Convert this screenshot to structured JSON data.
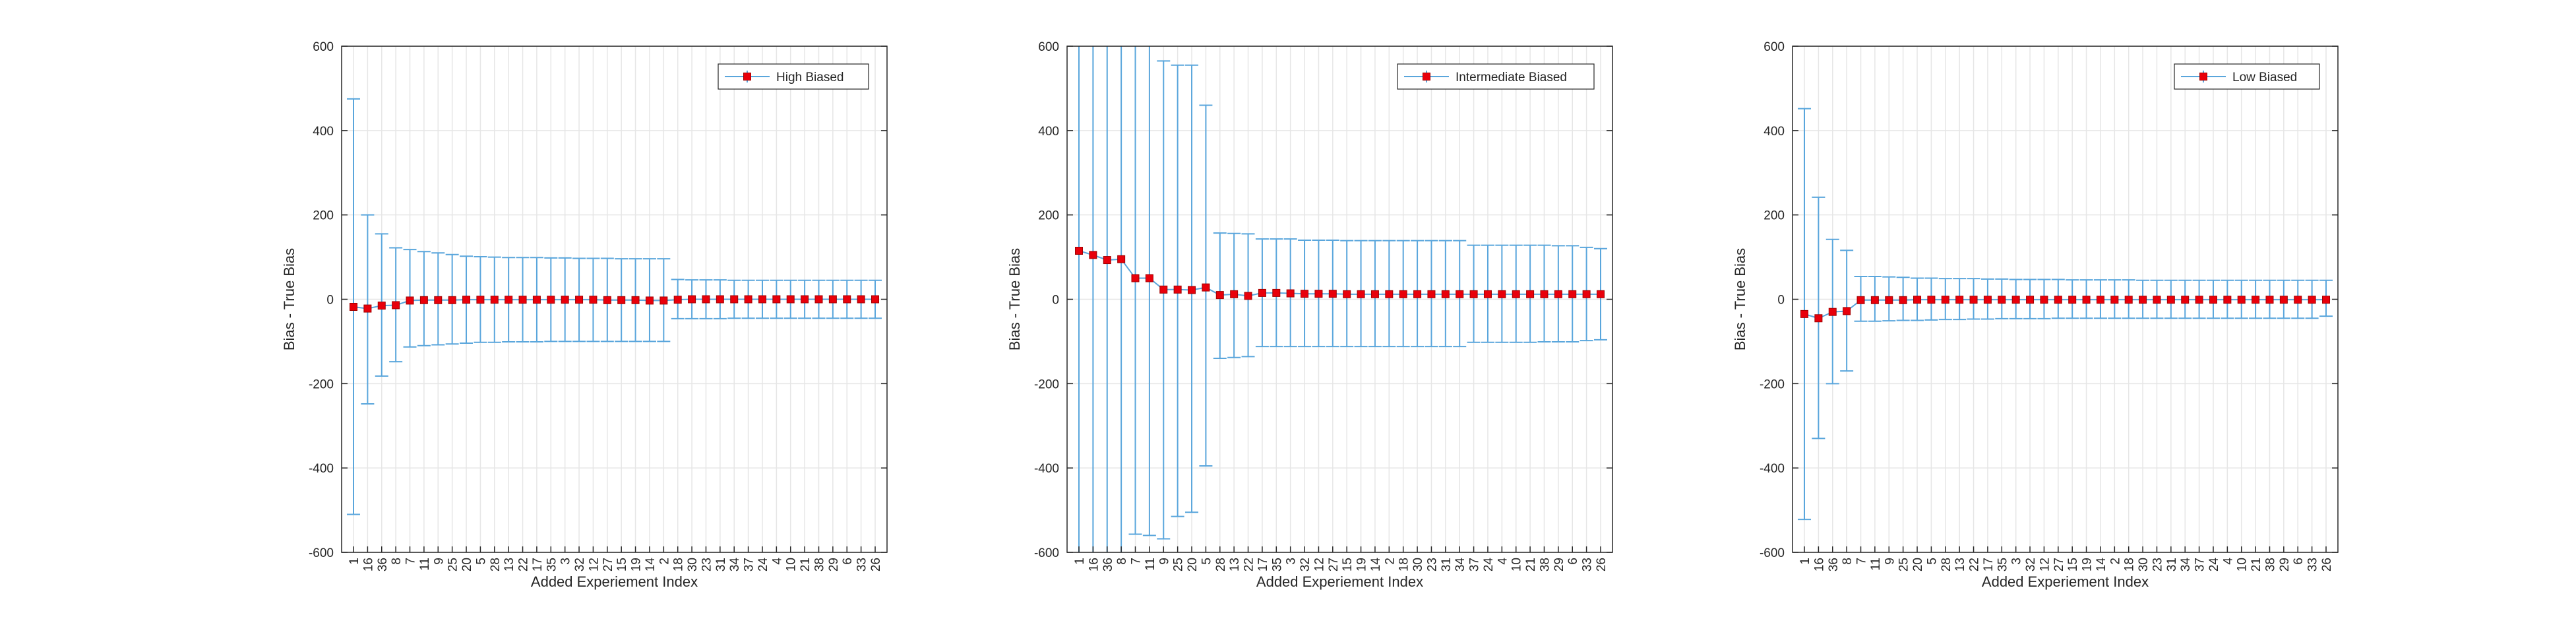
{
  "colors": {
    "errorbar": "#5aa6dc",
    "marker_fill": "#e8000b",
    "marker_edge": "#a00000",
    "grid": "#e6e6e6",
    "axis": "#262626",
    "background": "#ffffff"
  },
  "chart_data": [
    {
      "type": "errorbar",
      "xlabel": "Added Experiement Index",
      "ylabel": "Bias - True Bias",
      "ylim": [
        -600,
        600
      ],
      "yticks": [
        -600,
        -400,
        -200,
        0,
        200,
        400,
        600
      ],
      "grid": true,
      "legend_position": "top-right",
      "series": [
        {
          "name": "High Biased",
          "categories": [
            "1",
            "16",
            "36",
            "8",
            "7",
            "11",
            "9",
            "25",
            "20",
            "5",
            "28",
            "13",
            "22",
            "17",
            "35",
            "3",
            "32",
            "12",
            "27",
            "15",
            "19",
            "14",
            "2",
            "18",
            "30",
            "23",
            "31",
            "34",
            "37",
            "24",
            "4",
            "10",
            "21",
            "38",
            "29",
            "6",
            "33",
            "26"
          ],
          "values": [
            -18,
            -22,
            -15,
            -14,
            -3,
            -2,
            -2,
            -2,
            -1,
            -1,
            -1,
            -1,
            -1,
            -1,
            -1,
            -1,
            -1,
            -1,
            -2,
            -2,
            -2,
            -3,
            -3,
            -1,
            0,
            0,
            0,
            0,
            0,
            0,
            0,
            0,
            0,
            0,
            0,
            0,
            0,
            0
          ],
          "upper": [
            475,
            200,
            155,
            122,
            118,
            113,
            110,
            106,
            102,
            101,
            100,
            99,
            99,
            99,
            98,
            98,
            97,
            97,
            97,
            96,
            96,
            96,
            96,
            47,
            46,
            46,
            46,
            45,
            45,
            45,
            45,
            45,
            45,
            45,
            45,
            45,
            45,
            45
          ],
          "lower": [
            -510,
            -248,
            -182,
            -148,
            -113,
            -110,
            -108,
            -106,
            -104,
            -102,
            -102,
            -101,
            -101,
            -101,
            -100,
            -100,
            -100,
            -100,
            -100,
            -100,
            -100,
            -100,
            -100,
            -46,
            -46,
            -46,
            -46,
            -45,
            -45,
            -45,
            -45,
            -45,
            -45,
            -45,
            -45,
            -45,
            -45,
            -45
          ]
        }
      ]
    },
    {
      "type": "errorbar",
      "xlabel": "Added Experiement Index",
      "ylabel": "Bias - True Bias",
      "ylim": [
        -600,
        600
      ],
      "yticks": [
        -600,
        -400,
        -200,
        0,
        200,
        400,
        600
      ],
      "grid": true,
      "legend_position": "top-right",
      "series": [
        {
          "name": "Intermediate Biased",
          "categories": [
            "1",
            "16",
            "36",
            "8",
            "7",
            "11",
            "9",
            "25",
            "20",
            "5",
            "28",
            "13",
            "22",
            "17",
            "35",
            "3",
            "32",
            "12",
            "27",
            "15",
            "19",
            "14",
            "2",
            "18",
            "30",
            "23",
            "31",
            "34",
            "37",
            "24",
            "4",
            "10",
            "21",
            "38",
            "29",
            "6",
            "33",
            "26"
          ],
          "values": [
            115,
            105,
            93,
            95,
            50,
            50,
            23,
            23,
            22,
            28,
            10,
            12,
            8,
            15,
            15,
            14,
            13,
            13,
            13,
            12,
            12,
            12,
            12,
            12,
            12,
            12,
            12,
            12,
            12,
            12,
            12,
            12,
            12,
            12,
            12,
            12,
            12,
            12
          ],
          "upper": [
            900,
            900,
            900,
            900,
            900,
            900,
            565,
            555,
            555,
            460,
            157,
            156,
            155,
            143,
            143,
            143,
            140,
            140,
            140,
            139,
            139,
            139,
            139,
            139,
            139,
            139,
            139,
            139,
            128,
            128,
            128,
            128,
            128,
            128,
            127,
            127,
            123,
            120
          ],
          "lower": [
            -900,
            -900,
            -900,
            -900,
            -557,
            -560,
            -568,
            -515,
            -505,
            -395,
            -140,
            -138,
            -136,
            -112,
            -112,
            -112,
            -112,
            -112,
            -112,
            -112,
            -112,
            -112,
            -112,
            -112,
            -112,
            -112,
            -112,
            -112,
            -102,
            -102,
            -102,
            -102,
            -102,
            -101,
            -101,
            -101,
            -98,
            -96
          ]
        }
      ]
    },
    {
      "type": "errorbar",
      "xlabel": "Added Experiement Index",
      "ylabel": "Bias - True Bias",
      "ylim": [
        -600,
        600
      ],
      "yticks": [
        -600,
        -400,
        -200,
        0,
        200,
        400,
        600
      ],
      "grid": true,
      "legend_position": "top-right",
      "series": [
        {
          "name": "Low Biased",
          "categories": [
            "1",
            "16",
            "36",
            "8",
            "7",
            "11",
            "9",
            "25",
            "20",
            "5",
            "28",
            "13",
            "22",
            "17",
            "35",
            "3",
            "32",
            "12",
            "27",
            "15",
            "19",
            "14",
            "2",
            "18",
            "30",
            "23",
            "31",
            "34",
            "37",
            "24",
            "4",
            "10",
            "21",
            "38",
            "29",
            "6",
            "33",
            "26"
          ],
          "values": [
            -35,
            -45,
            -30,
            -28,
            -2,
            -2,
            -2,
            -2,
            -1,
            -1,
            -1,
            -1,
            -1,
            -1,
            -1,
            -1,
            -1,
            -1,
            -1,
            -1,
            -1,
            -1,
            -1,
            -1,
            -1,
            -1,
            -1,
            -1,
            -1,
            -1,
            -1,
            -1,
            -1,
            -1,
            -1,
            -1,
            -1,
            -1
          ],
          "upper": [
            452,
            242,
            142,
            116,
            54,
            54,
            53,
            52,
            50,
            50,
            49,
            49,
            49,
            48,
            48,
            47,
            47,
            47,
            47,
            46,
            46,
            46,
            46,
            46,
            45,
            45,
            45,
            45,
            45,
            45,
            45,
            45,
            45,
            45,
            45,
            45,
            45,
            45
          ],
          "lower": [
            -522,
            -330,
            -200,
            -170,
            -52,
            -52,
            -51,
            -50,
            -50,
            -49,
            -48,
            -48,
            -47,
            -47,
            -46,
            -46,
            -46,
            -46,
            -45,
            -45,
            -45,
            -45,
            -45,
            -45,
            -45,
            -45,
            -45,
            -45,
            -45,
            -45,
            -45,
            -45,
            -45,
            -45,
            -45,
            -45,
            -45,
            -40
          ]
        }
      ]
    }
  ]
}
